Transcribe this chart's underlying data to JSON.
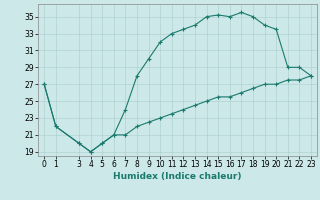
{
  "xlabel": "Humidex (Indice chaleur)",
  "ylabel": "",
  "bg_color": "#cce8e8",
  "line_color": "#1a7a6e",
  "line1_x": [
    0,
    1,
    3,
    4,
    5,
    6,
    7,
    8,
    9,
    10,
    11,
    12,
    13,
    14,
    15,
    16,
    17,
    18,
    19,
    20,
    21,
    22,
    23
  ],
  "line1_y": [
    27,
    22,
    20,
    19,
    20,
    21,
    24,
    28,
    30,
    32,
    33,
    33.5,
    34,
    35,
    35.2,
    35,
    35.5,
    35,
    34,
    33.5,
    29,
    29,
    28
  ],
  "line2_x": [
    0,
    1,
    3,
    4,
    5,
    6,
    7,
    8,
    9,
    10,
    11,
    12,
    13,
    14,
    15,
    16,
    17,
    18,
    19,
    20,
    21,
    22,
    23
  ],
  "line2_y": [
    27,
    22,
    20,
    19,
    20,
    21,
    21,
    22,
    22.5,
    23,
    23.5,
    24,
    24.5,
    25,
    25.5,
    25.5,
    26,
    26.5,
    27,
    27,
    27.5,
    27.5,
    28
  ],
  "xlim": [
    -0.5,
    23.5
  ],
  "ylim": [
    18.5,
    36.5
  ],
  "yticks": [
    19,
    21,
    23,
    25,
    27,
    29,
    31,
    33,
    35
  ],
  "xticks": [
    0,
    1,
    3,
    4,
    5,
    6,
    7,
    8,
    9,
    10,
    11,
    12,
    13,
    14,
    15,
    16,
    17,
    18,
    19,
    20,
    21,
    22,
    23
  ],
  "title_fontsize": 7,
  "axis_fontsize": 6.5,
  "tick_fontsize": 5.5
}
